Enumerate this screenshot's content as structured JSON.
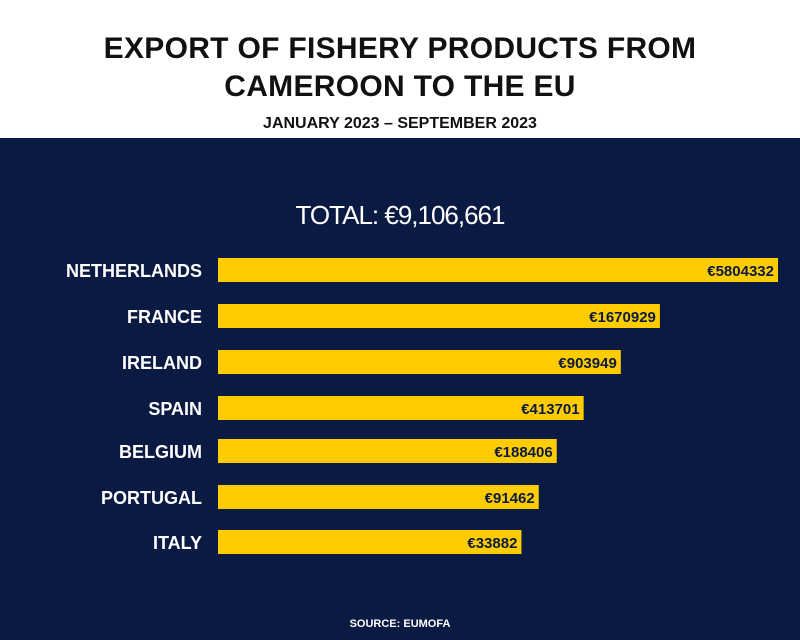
{
  "header": {
    "title_line1": "EXPORT OF FISHERY PRODUCTS FROM",
    "title_line2": "CAMEROON TO THE EU",
    "subtitle": "JANUARY 2023 – SEPTEMBER 2023"
  },
  "total_label": "TOTAL: €9,106,661",
  "source": "SOURCE: EUMOFA",
  "colors": {
    "panel": "#0b1a42",
    "bar": "#ffcc00",
    "label_text": "#ffffff",
    "value_text": "#0b1a42"
  },
  "chart_data": {
    "type": "bar",
    "orientation": "horizontal",
    "title": "EXPORT OF FISHERY PRODUCTS FROM CAMEROON TO THE EU",
    "subtitle": "JANUARY 2023 – SEPTEMBER 2023",
    "categories": [
      "NETHERLANDS",
      "FRANCE",
      "IRELAND",
      "SPAIN",
      "BELGIUM",
      "PORTUGAL",
      "ITALY"
    ],
    "values": [
      5804332,
      1670929,
      903949,
      413701,
      188406,
      91462,
      33882
    ],
    "value_labels": [
      "€5804332",
      "€1670929",
      "€903949",
      "€413701",
      "€188406",
      "€91462",
      "€33882"
    ],
    "xlabel": "",
    "ylabel": "",
    "grid": false,
    "legend": "none"
  }
}
